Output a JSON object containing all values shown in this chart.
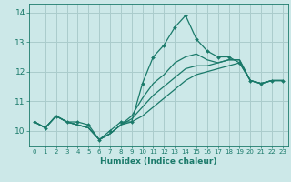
{
  "xlabel": "Humidex (Indice chaleur)",
  "background_color": "#cce8e8",
  "grid_color": "#aacccc",
  "line_color": "#1a7a6a",
  "xlim": [
    -0.5,
    23.5
  ],
  "ylim": [
    9.5,
    14.3
  ],
  "xticks": [
    0,
    1,
    2,
    3,
    4,
    5,
    6,
    7,
    8,
    9,
    10,
    11,
    12,
    13,
    14,
    15,
    16,
    17,
    18,
    19,
    20,
    21,
    22,
    23
  ],
  "yticks": [
    10,
    11,
    12,
    13,
    14
  ],
  "hours": [
    0,
    1,
    2,
    3,
    4,
    5,
    6,
    7,
    8,
    9,
    10,
    11,
    12,
    13,
    14,
    15,
    16,
    17,
    18,
    19,
    20,
    21,
    22,
    23
  ],
  "main_line": [
    10.3,
    10.1,
    10.5,
    10.3,
    10.3,
    10.2,
    9.7,
    10.0,
    10.3,
    10.3,
    11.6,
    12.5,
    12.9,
    13.5,
    13.9,
    13.1,
    12.7,
    12.5,
    12.5,
    12.3,
    11.7,
    11.6,
    11.7,
    11.7
  ],
  "line2": [
    10.3,
    10.1,
    10.5,
    10.3,
    10.2,
    10.1,
    9.7,
    9.9,
    10.2,
    10.3,
    10.5,
    10.8,
    11.1,
    11.4,
    11.7,
    11.9,
    12.0,
    12.1,
    12.2,
    12.3,
    11.7,
    11.6,
    11.7,
    11.7
  ],
  "line3": [
    10.3,
    10.1,
    10.5,
    10.3,
    10.2,
    10.1,
    9.7,
    9.9,
    10.2,
    10.4,
    10.8,
    11.2,
    11.5,
    11.8,
    12.1,
    12.2,
    12.2,
    12.3,
    12.4,
    12.4,
    11.7,
    11.6,
    11.7,
    11.7
  ],
  "line4": [
    10.3,
    10.1,
    10.5,
    10.3,
    10.2,
    10.1,
    9.7,
    9.9,
    10.2,
    10.5,
    11.1,
    11.6,
    11.9,
    12.3,
    12.5,
    12.6,
    12.4,
    12.3,
    12.4,
    12.4,
    11.7,
    11.6,
    11.7,
    11.7
  ],
  "xlabel_fontsize": 6.5,
  "xlabel_fontweight": "bold",
  "ytick_fontsize": 6.5,
  "xtick_fontsize": 5.0
}
